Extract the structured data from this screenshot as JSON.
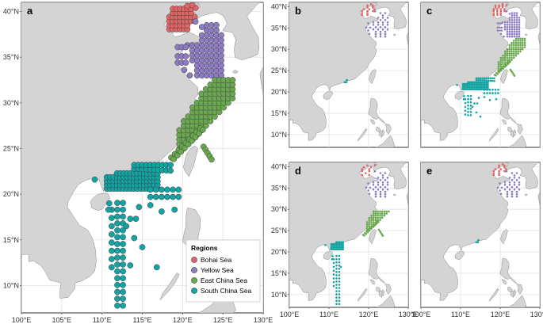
{
  "colors": {
    "sea": "#ffffff",
    "land": "#d4d4d4",
    "coast": "#8c8c8c",
    "grid": "#e3e3e3",
    "bohai": "#e06666",
    "yellow": "#8e7cc3",
    "east_china": "#6aa84f",
    "south_china": "#14a3a3"
  },
  "panels": {
    "a": {
      "label": "a"
    },
    "b": {
      "label": "b"
    },
    "c": {
      "label": "c"
    },
    "d": {
      "label": "d"
    },
    "e": {
      "label": "e"
    }
  },
  "legend": {
    "title": "Regions",
    "items": [
      {
        "name": "Bohai Sea",
        "color": "#e06666"
      },
      {
        "name": "Yellow Sea",
        "color": "#8e7cc3"
      },
      {
        "name": "East China Sea",
        "color": "#6aa84f"
      },
      {
        "name": "South China Sea",
        "color": "#14a3a3"
      }
    ]
  },
  "ticks": {
    "main_x": [
      "100°E",
      "105°E",
      "110°E",
      "115°E",
      "120°E",
      "125°E",
      "130°E"
    ],
    "main_y": [
      "10°N",
      "15°N",
      "20°N",
      "25°N",
      "30°N",
      "35°N",
      "40°N"
    ],
    "small_x": [
      "100°E",
      "110°E",
      "120°E",
      "130°E"
    ],
    "small_y_top": [
      "10°N",
      "15°N",
      "20°N",
      "25°N",
      "30°N",
      "35°N",
      "40°N"
    ],
    "small_y_bottom": [
      "10°N",
      "15°N",
      "20°N",
      "25°N",
      "30°N",
      "35°N",
      "40°N"
    ]
  },
  "map_extent": {
    "lon": [
      100,
      130
    ],
    "lat": [
      7,
      41
    ]
  }
}
